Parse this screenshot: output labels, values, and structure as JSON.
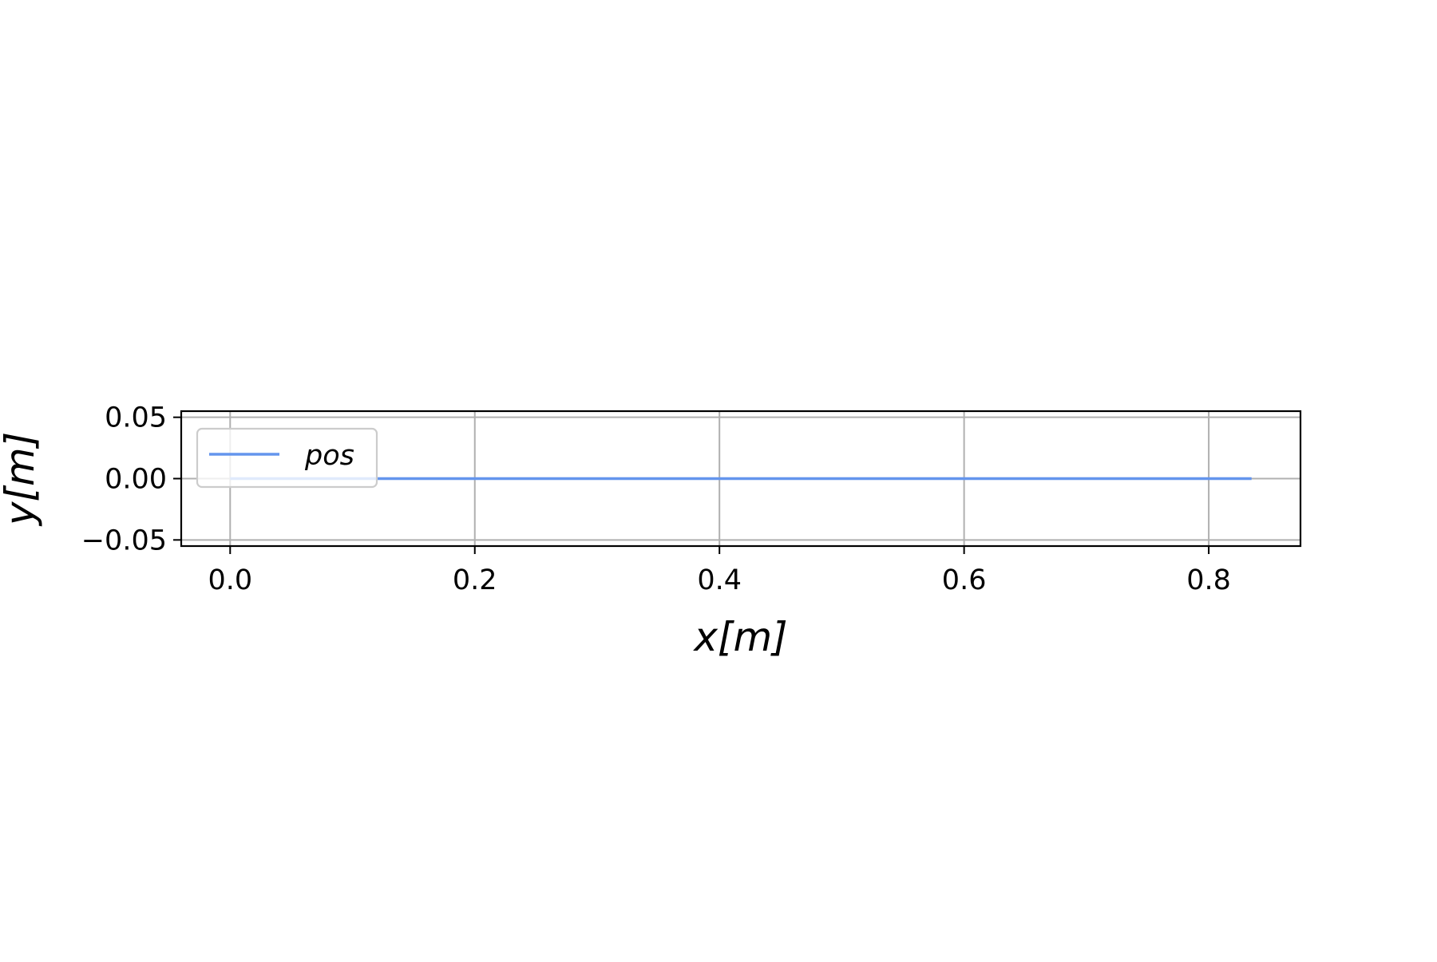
{
  "chart_data": {
    "type": "line",
    "xlabel": "x[m]",
    "ylabel": "y[m]",
    "xlim": [
      -0.04,
      0.875
    ],
    "ylim": [
      -0.055,
      0.055
    ],
    "xticks": [
      0.0,
      0.2,
      0.4,
      0.6,
      0.8
    ],
    "xtick_labels": [
      "0.0",
      "0.2",
      "0.4",
      "0.6",
      "0.8"
    ],
    "yticks": [
      0.05,
      0.0,
      -0.05
    ],
    "ytick_labels": [
      "0.05",
      "0.00",
      "−0.05"
    ],
    "grid": true,
    "legend_position": "upper-left",
    "series": [
      {
        "name": "pos",
        "color": "#6495ED",
        "x": [
          0.0,
          0.835
        ],
        "y": [
          0.0,
          0.0
        ]
      }
    ]
  }
}
